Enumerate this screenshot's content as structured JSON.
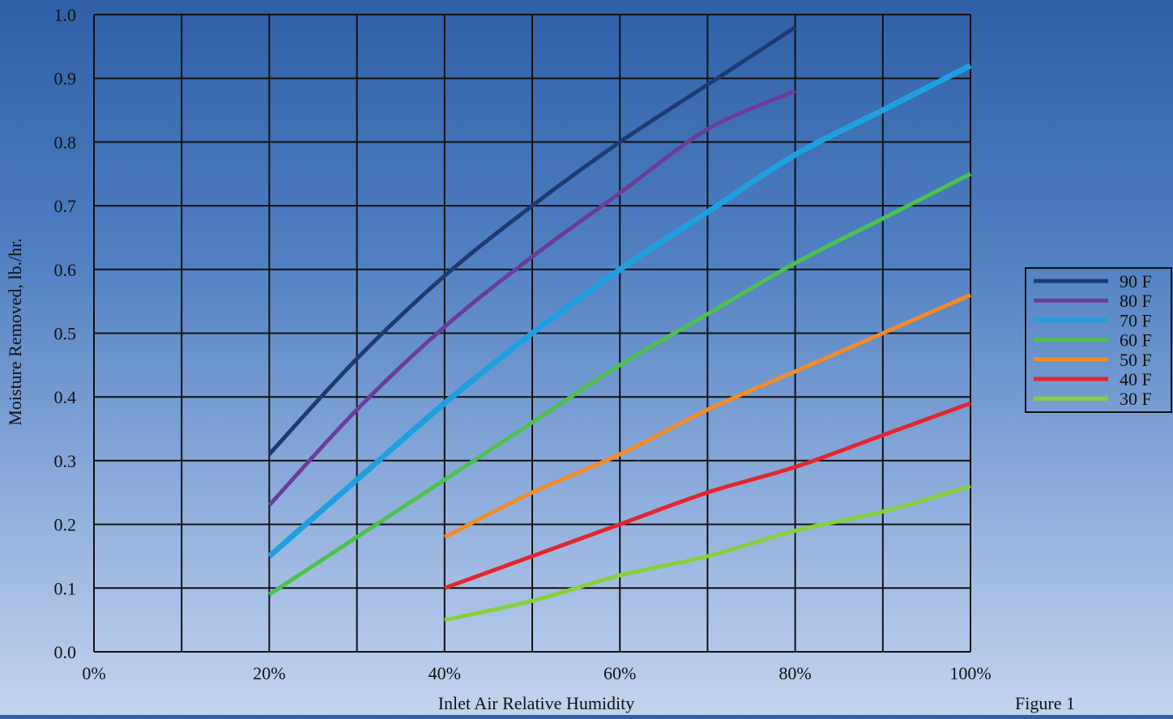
{
  "chart_data": {
    "type": "line",
    "title": "",
    "xlabel": "Inlet Air Relative Humidity",
    "ylabel": "Moisture Removed, lb./hr.",
    "caption": "Figure 1",
    "xlim": [
      0,
      100
    ],
    "ylim": [
      0,
      1.0
    ],
    "x_grid_step": 10,
    "y_grid_step": 0.1,
    "x_ticks": [
      0,
      20,
      40,
      60,
      80,
      100
    ],
    "x_tick_labels": [
      "0%",
      "20%",
      "40%",
      "60%",
      "80%",
      "100%"
    ],
    "y_ticks": [
      0,
      0.1,
      0.2,
      0.3,
      0.4,
      0.5,
      0.6,
      0.7,
      0.8,
      0.9,
      1.0
    ],
    "y_tick_labels": [
      "0.0",
      "0.1",
      "0.2",
      "0.3",
      "0.4",
      "0.5",
      "0.6",
      "0.7",
      "0.8",
      "0.9",
      "1.0"
    ],
    "grid": true,
    "legend_position": "right",
    "series": [
      {
        "name": "90 F",
        "color": "#1f3a73",
        "x": [
          20,
          30,
          40,
          50,
          60,
          70,
          80
        ],
        "y": [
          0.31,
          0.46,
          0.59,
          0.7,
          0.8,
          0.89,
          0.98
        ]
      },
      {
        "name": "80 F",
        "color": "#6a3d9a",
        "x": [
          20,
          30,
          40,
          50,
          60,
          70,
          80
        ],
        "y": [
          0.23,
          0.38,
          0.51,
          0.62,
          0.72,
          0.82,
          0.88
        ]
      },
      {
        "name": "70 F",
        "color": "#1ea0e0",
        "x": [
          20,
          30,
          40,
          50,
          60,
          70,
          80,
          90,
          100
        ],
        "y": [
          0.15,
          0.27,
          0.39,
          0.5,
          0.6,
          0.69,
          0.78,
          0.85,
          0.92
        ]
      },
      {
        "name": "60 F",
        "color": "#4cc24c",
        "x": [
          20,
          30,
          40,
          50,
          60,
          70,
          80,
          90,
          100
        ],
        "y": [
          0.09,
          0.18,
          0.27,
          0.36,
          0.45,
          0.53,
          0.61,
          0.68,
          0.75
        ]
      },
      {
        "name": "50 F",
        "color": "#f28c28",
        "x": [
          40,
          50,
          60,
          70,
          80,
          90,
          100
        ],
        "y": [
          0.18,
          0.25,
          0.31,
          0.38,
          0.44,
          0.5,
          0.56
        ]
      },
      {
        "name": "40 F",
        "color": "#e2262f",
        "x": [
          40,
          50,
          60,
          70,
          80,
          90,
          100
        ],
        "y": [
          0.1,
          0.15,
          0.2,
          0.25,
          0.29,
          0.34,
          0.39
        ]
      },
      {
        "name": "30 F",
        "color": "#86d13b",
        "x": [
          40,
          50,
          60,
          70,
          80,
          90,
          100
        ],
        "y": [
          0.05,
          0.08,
          0.12,
          0.15,
          0.19,
          0.22,
          0.26
        ]
      }
    ]
  }
}
